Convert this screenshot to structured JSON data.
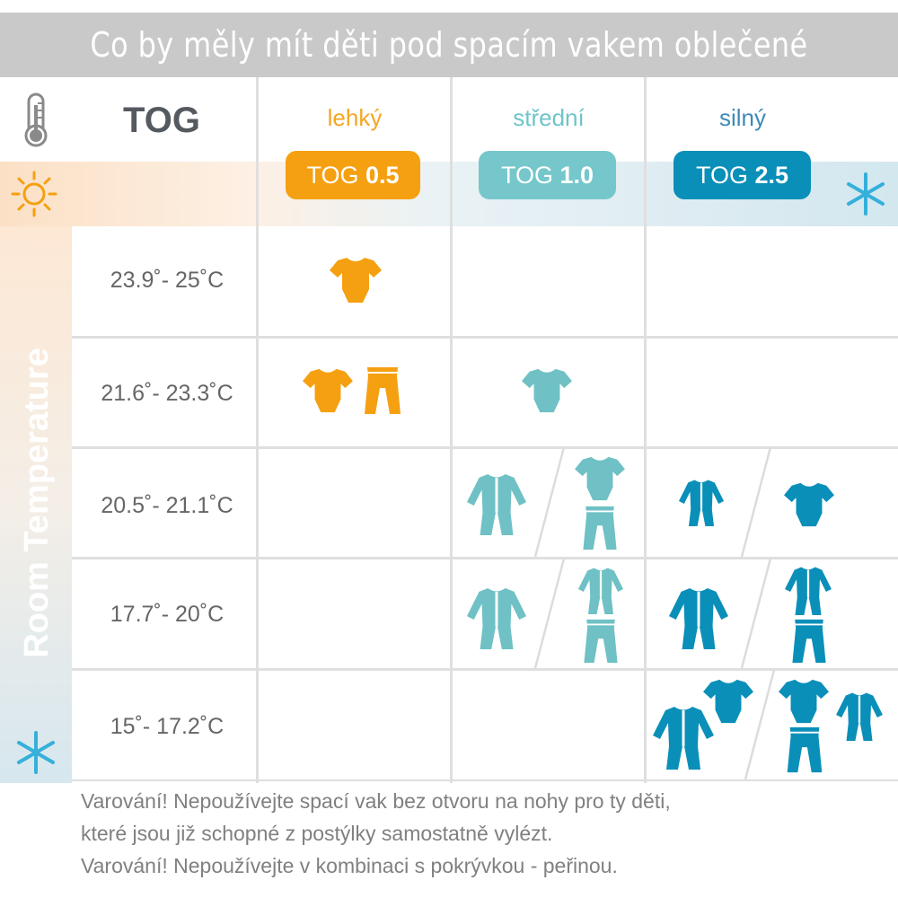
{
  "title": "Co by měly mít děti pod spacím vakem oblečené",
  "header": {
    "tog_label": "TOG",
    "columns": [
      {
        "name": "lehký",
        "pill_prefix": "TOG",
        "pill_value": "0.5",
        "color": "#f5a011"
      },
      {
        "name": "střední",
        "pill_prefix": "TOG",
        "pill_value": "1.0",
        "color": "#75c7cb"
      },
      {
        "name": "silný",
        "pill_prefix": "TOG",
        "pill_value": "2.5",
        "color": "#0a8fb9"
      }
    ]
  },
  "side_label": "Room Temperature",
  "icons": {
    "thermometer": "thermometer-icon",
    "sun": "sun-icon",
    "snowflake": "snowflake-icon",
    "bodysuit": "bodysuit-icon",
    "pants": "pants-icon",
    "sleepsuit": "sleepsuit-icon"
  },
  "rows": [
    {
      "range": "23.9˚- 25˚C"
    },
    {
      "range": "21.6˚- 23.3˚C"
    },
    {
      "range": "20.5˚- 21.1˚C"
    },
    {
      "range": "17.7˚- 20˚C"
    },
    {
      "range": "15˚- 17.2˚C"
    }
  ],
  "footer": {
    "line1": "Varování! Nepoužívejte spací vak bez otvoru na nohy pro ty děti,",
    "line2": "které jsou již schopné z postýlky samostatně vylézt.",
    "line3": "Varování! Nepoužívejte v kombinaci s pokrývkou - peřinou."
  }
}
